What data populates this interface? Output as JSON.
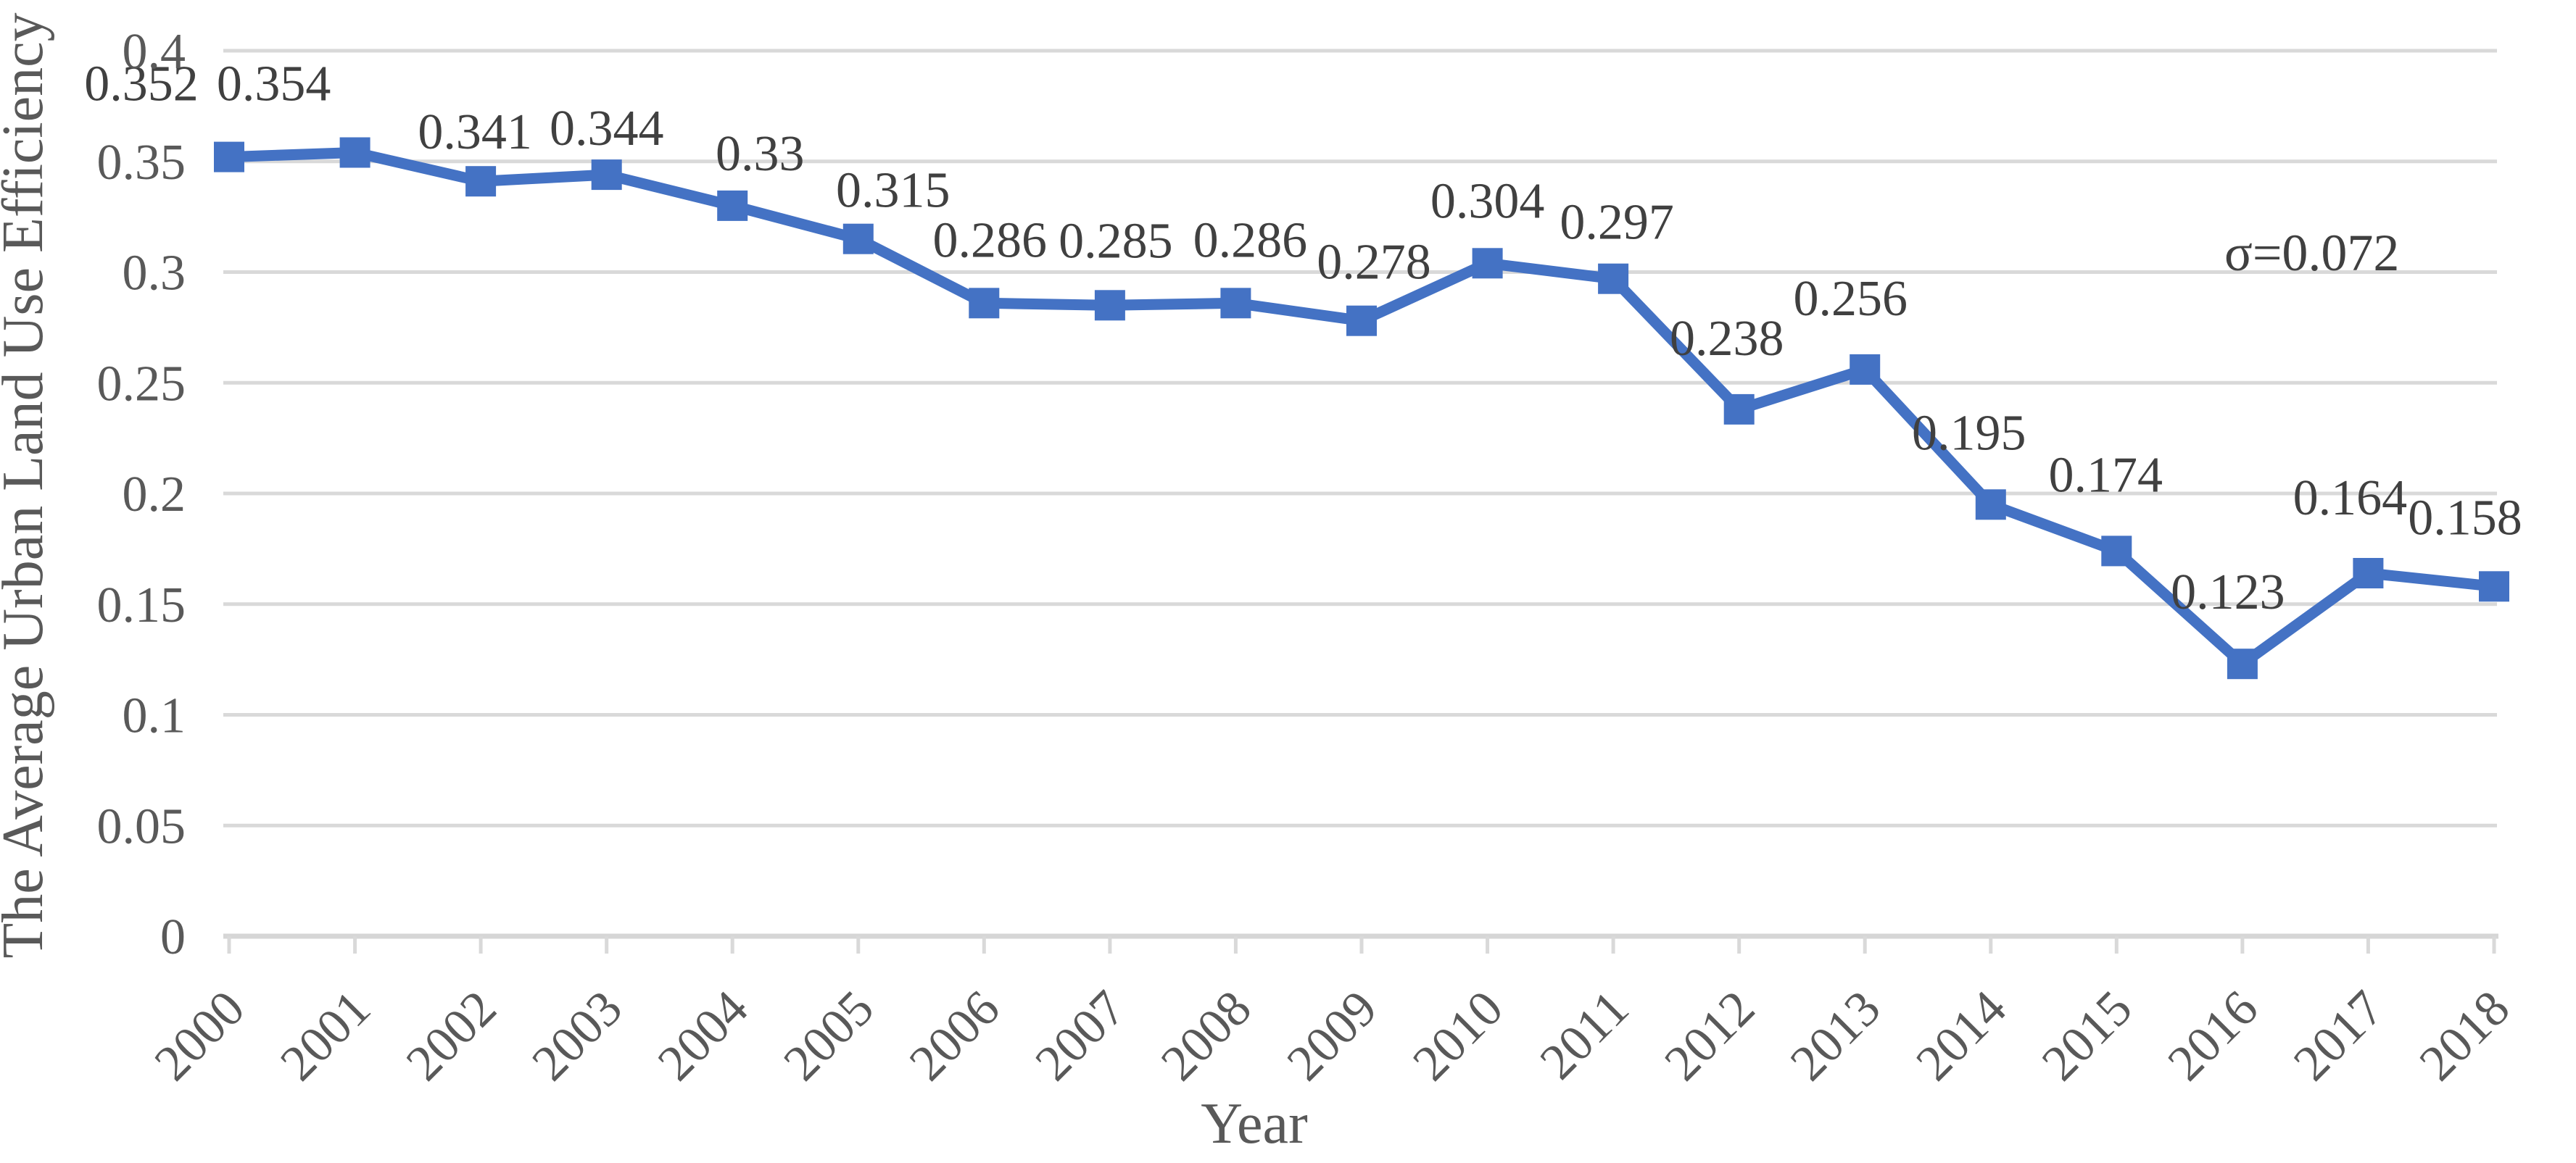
{
  "chart_data": {
    "type": "line",
    "title": "",
    "categories": [
      "2000",
      "2001",
      "2002",
      "2003",
      "2004",
      "2005",
      "2006",
      "2007",
      "2008",
      "2009",
      "2010",
      "2011",
      "2012",
      "2013",
      "2014",
      "2015",
      "2016",
      "2017",
      "2018"
    ],
    "series": [
      {
        "name": "The Average Urban Land Use Efficiency",
        "values": [
          0.352,
          0.354,
          0.341,
          0.344,
          0.33,
          0.315,
          0.286,
          0.285,
          0.286,
          0.278,
          0.304,
          0.297,
          0.238,
          0.256,
          0.195,
          0.174,
          0.123,
          0.164,
          0.158
        ],
        "data_labels": [
          "0.352",
          "0.354",
          "0.341",
          "0.344",
          "0.33",
          "0.315",
          "0.286",
          "0.285",
          "0.286",
          "0.278",
          "0.304",
          "0.297",
          "0.238",
          "0.256",
          "0.195",
          "0.174",
          "0.123",
          "0.164",
          "0.158"
        ],
        "color": "#4472C4",
        "marker": "square"
      }
    ],
    "xlabel": "Year",
    "ylabel": "The Average Urban Land Use Efficiency",
    "ylim": [
      0,
      0.4
    ],
    "y_tick_step": 0.05,
    "y_tick_labels": [
      "0",
      "0.05",
      "0.1",
      "0.15",
      "0.2",
      "0.25",
      "0.3",
      "0.35",
      "0.4"
    ],
    "annotation": {
      "text": "σ=0.072"
    },
    "legend": "none",
    "grid": {
      "horizontal": true,
      "vertical": false
    },
    "colors": {
      "line": "#4472C4",
      "gridline": "#D9D9D9",
      "axis_line": "#D6D6D6",
      "tick_mark": "#D9D9D9",
      "data_label": "#404040",
      "tick_label": "#595959",
      "axis_title": "#595959",
      "annotation": "#404040",
      "background": "#FFFFFF"
    }
  }
}
